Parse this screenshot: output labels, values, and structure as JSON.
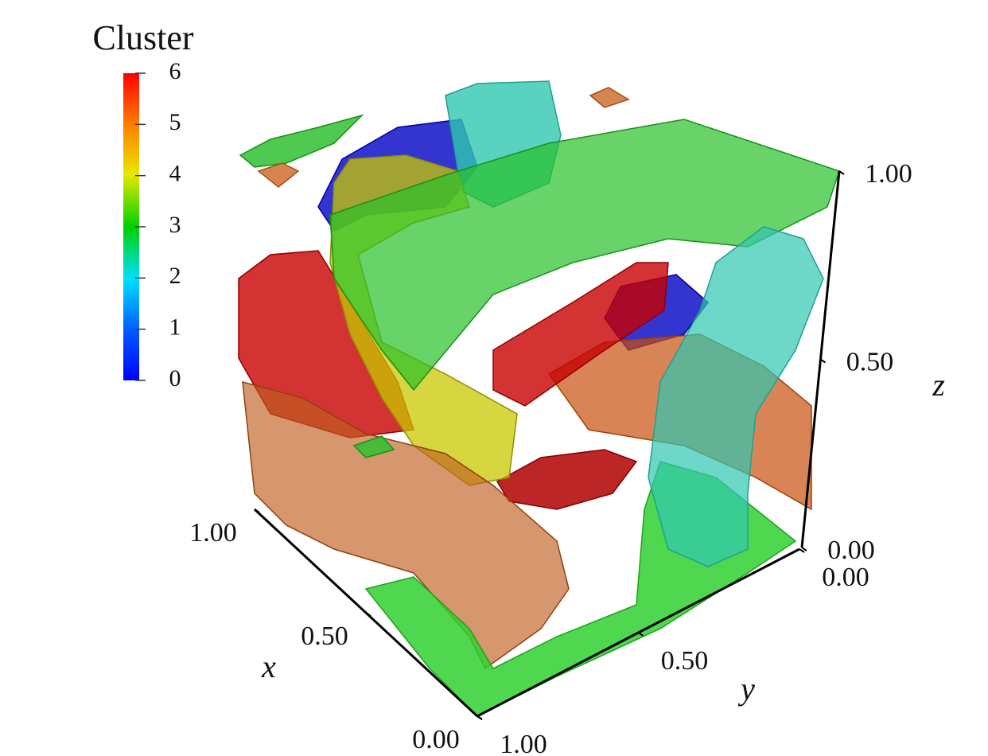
{
  "chart_data": {
    "type": "voxel3d",
    "colorbar": {
      "title": "Cluster",
      "lim": [
        0,
        6
      ],
      "ticks": [
        0,
        1,
        2,
        3,
        4,
        5,
        6
      ]
    },
    "axes": {
      "x": {
        "label": "x",
        "lim": [
          0,
          1
        ],
        "ticks": [
          {
            "value": 0,
            "label": "0.00"
          },
          {
            "value": 0.5,
            "label": "0.50"
          },
          {
            "value": 1,
            "label": "1.00"
          }
        ]
      },
      "y": {
        "label": "y",
        "lim": [
          0,
          1
        ],
        "ticks": [
          {
            "value": 0,
            "label": "0.00"
          },
          {
            "value": 0.5,
            "label": "0.50"
          },
          {
            "value": 1,
            "label": "1.00"
          }
        ]
      },
      "z": {
        "label": "z",
        "lim": [
          0,
          1
        ],
        "ticks": [
          {
            "value": 0,
            "label": "0.00"
          },
          {
            "value": 0.5,
            "label": "0.50"
          },
          {
            "value": 1,
            "label": "1.00"
          }
        ]
      }
    }
  }
}
